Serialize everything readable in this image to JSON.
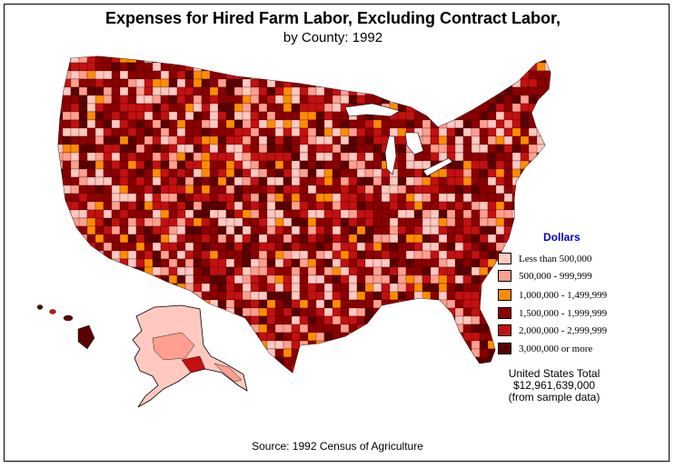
{
  "title": "Expenses for Hired Farm Labor, Excluding Contract Labor,",
  "subtitle": "by County:  1992",
  "legend": {
    "title": "Dollars",
    "items": [
      {
        "label": "Less than 500,000",
        "color": "#ffc8c0"
      },
      {
        "label": "500,000  -  999,999",
        "color": "#ff9f8f"
      },
      {
        "label": "1,000,000  -  1,499,999",
        "color": "#ff8c00"
      },
      {
        "label": "1,500,000  -  1,999,999",
        "color": "#8b0000"
      },
      {
        "label": "2,000,000  -  2,999,999",
        "color": "#c41010"
      },
      {
        "label": "3,000,000 or more",
        "color": "#5a0000"
      }
    ]
  },
  "total": {
    "line1": "United States Total",
    "line2": "$12,961,639,000",
    "line3": "(from sample data)"
  },
  "source": "Source:  1992 Census of Agriculture",
  "regions": [
    "Conterminous United States",
    "Alaska",
    "Hawaii"
  ]
}
